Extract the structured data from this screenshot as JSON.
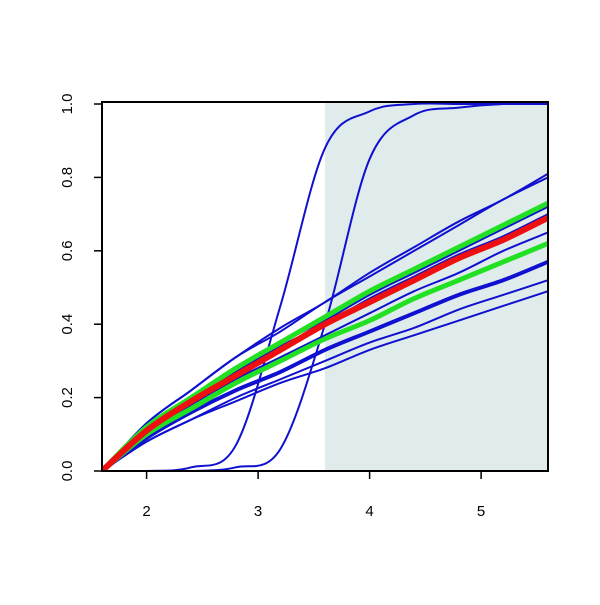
{
  "chart_data": {
    "type": "line",
    "x": [
      1.6,
      2.0,
      2.4,
      2.8,
      3.2,
      3.6,
      4.0,
      4.4,
      4.8,
      5.2,
      5.6
    ],
    "xlim": [
      1.6,
      5.6
    ],
    "ylim": [
      0,
      1
    ],
    "xticks": [
      2,
      3,
      4,
      5
    ],
    "yticks": [
      {
        "value": 0,
        "label": "0.0"
      },
      0.2,
      0.4,
      0.6,
      0.8,
      {
        "value": 1,
        "label": "1.0"
      }
    ],
    "shaded_region": {
      "x": [
        3.6,
        5.6
      ],
      "color": "#e0ecec"
    },
    "series": [
      {
        "color": "#1010d0",
        "width": 2,
        "values": [
          0,
          0.13,
          0.22,
          0.31,
          0.39,
          0.46,
          0.54,
          0.61,
          0.68,
          0.74,
          0.81
        ]
      },
      {
        "color": "#1010d0",
        "width": 2,
        "values": [
          0,
          0.13,
          0.22,
          0.31,
          0.38,
          0.46,
          0.53,
          0.6,
          0.67,
          0.74,
          0.8
        ]
      },
      {
        "color": "#1010d0",
        "width": 2,
        "values": [
          0,
          0.11,
          0.2,
          0.28,
          0.35,
          0.41,
          0.48,
          0.54,
          0.6,
          0.66,
          0.72
        ]
      },
      {
        "color": "#1010d0",
        "width": 2,
        "values": [
          0,
          0.11,
          0.19,
          0.27,
          0.34,
          0.4,
          0.47,
          0.53,
          0.59,
          0.64,
          0.7
        ]
      },
      {
        "color": "#1010d0",
        "width": 2,
        "values": [
          0,
          0.1,
          0.18,
          0.25,
          0.31,
          0.37,
          0.43,
          0.49,
          0.54,
          0.6,
          0.65
        ]
      },
      {
        "color": "#1010d0",
        "width": 4,
        "values": [
          0,
          0.09,
          0.16,
          0.22,
          0.27,
          0.33,
          0.38,
          0.43,
          0.48,
          0.52,
          0.57
        ]
      },
      {
        "color": "#1010d0",
        "width": 2,
        "values": [
          0,
          0.08,
          0.14,
          0.2,
          0.25,
          0.3,
          0.35,
          0.39,
          0.44,
          0.48,
          0.52
        ]
      },
      {
        "color": "#1010d0",
        "width": 2,
        "values": [
          0,
          0.08,
          0.14,
          0.19,
          0.24,
          0.28,
          0.33,
          0.37,
          0.41,
          0.45,
          0.49
        ]
      },
      {
        "color": "#1010d0",
        "width": 2,
        "values": [
          0,
          0,
          0.01,
          0.07,
          0.45,
          0.88,
          0.98,
          1,
          1,
          1,
          1
        ]
      },
      {
        "color": "#1010d0",
        "width": 2,
        "values": [
          0,
          0,
          0,
          0.01,
          0.06,
          0.4,
          0.85,
          0.97,
          0.99,
          1,
          1
        ]
      },
      {
        "color": "#22e022",
        "width": 5,
        "values": [
          0,
          0.12,
          0.2,
          0.28,
          0.35,
          0.42,
          0.49,
          0.55,
          0.61,
          0.67,
          0.73
        ]
      },
      {
        "color": "#22e022",
        "width": 5,
        "values": [
          0,
          0.1,
          0.17,
          0.24,
          0.3,
          0.36,
          0.41,
          0.47,
          0.52,
          0.57,
          0.62
        ]
      },
      {
        "color": "#ee1010",
        "width": 6,
        "values": [
          0,
          0.11,
          0.19,
          0.26,
          0.33,
          0.4,
          0.46,
          0.52,
          0.58,
          0.63,
          0.69
        ]
      }
    ]
  }
}
